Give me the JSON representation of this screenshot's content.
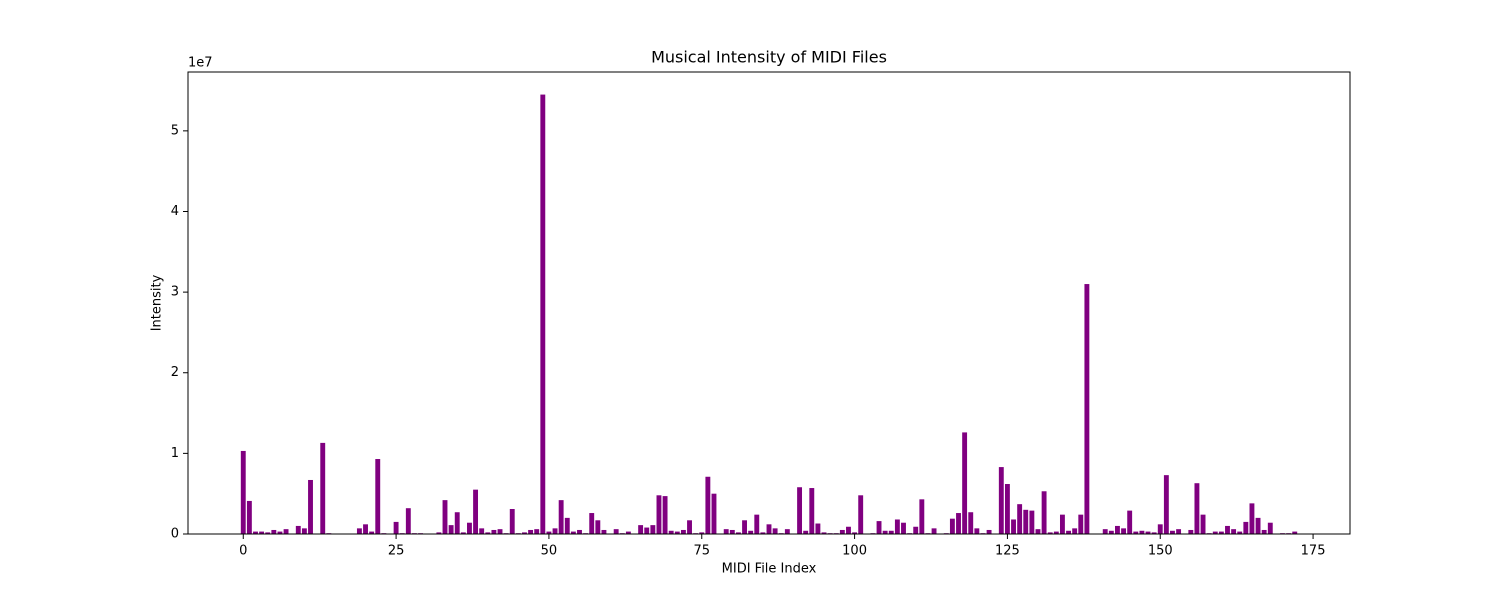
{
  "chart_data": {
    "type": "bar",
    "title": "Musical Intensity of MIDI Files",
    "xlabel": "MIDI File Index",
    "ylabel": "Intensity",
    "y_offset_label": "1e7",
    "color": "#800080",
    "x": [
      0,
      1,
      2,
      3,
      4,
      5,
      6,
      7,
      8,
      9,
      10,
      11,
      12,
      13,
      14,
      15,
      16,
      17,
      18,
      19,
      20,
      21,
      22,
      23,
      24,
      25,
      26,
      27,
      28,
      29,
      30,
      31,
      32,
      33,
      34,
      35,
      36,
      37,
      38,
      39,
      40,
      41,
      42,
      43,
      44,
      45,
      46,
      47,
      48,
      49,
      50,
      51,
      52,
      53,
      54,
      55,
      56,
      57,
      58,
      59,
      60,
      61,
      62,
      63,
      64,
      65,
      66,
      67,
      68,
      69,
      70,
      71,
      72,
      73,
      74,
      75,
      76,
      77,
      78,
      79,
      80,
      81,
      82,
      83,
      84,
      85,
      86,
      87,
      88,
      89,
      90,
      91,
      92,
      93,
      94,
      95,
      96,
      97,
      98,
      99,
      100,
      101,
      102,
      103,
      104,
      105,
      106,
      107,
      108,
      109,
      110,
      111,
      112,
      113,
      114,
      115,
      116,
      117,
      118,
      119,
      120,
      121,
      122,
      123,
      124,
      125,
      126,
      127,
      128,
      129,
      130,
      131,
      132,
      133,
      134,
      135,
      136,
      137,
      138,
      139,
      140,
      141,
      142,
      143,
      144,
      145,
      146,
      147,
      148,
      149,
      150,
      151,
      152,
      153,
      154,
      155,
      156,
      157,
      158,
      159,
      160,
      161,
      162,
      163,
      164,
      165,
      166,
      167,
      168,
      169,
      170,
      171,
      172
    ],
    "values": [
      1.03,
      0.41,
      0.03,
      0.03,
      0.02,
      0.05,
      0.03,
      0.06,
      0,
      0.1,
      0.07,
      0.67,
      0,
      1.13,
      0.01,
      0,
      0,
      0,
      0,
      0.07,
      0.12,
      0.03,
      0.93,
      0.01,
      0,
      0.15,
      0.01,
      0.32,
      0.01,
      0.01,
      0,
      0,
      0.02,
      0.42,
      0.11,
      0.27,
      0.02,
      0.14,
      0.55,
      0.07,
      0.02,
      0.05,
      0.06,
      0.01,
      0.31,
      0.01,
      0.02,
      0.05,
      0.06,
      5.45,
      0.03,
      0.07,
      0.42,
      0.2,
      0.03,
      0.05,
      0.01,
      0.26,
      0.17,
      0.05,
      0,
      0.06,
      0.01,
      0.03,
      0,
      0.11,
      0.08,
      0.11,
      0.48,
      0.47,
      0.04,
      0.03,
      0.05,
      0.17,
      0.01,
      0.02,
      0.71,
      0.5,
      0,
      0.06,
      0.05,
      0.02,
      0.17,
      0.04,
      0.24,
      0.02,
      0.12,
      0.07,
      0.01,
      0.06,
      0,
      0.58,
      0.04,
      0.57,
      0.13,
      0.02,
      0.01,
      0.01,
      0.05,
      0.09,
      0.02,
      0.48,
      0,
      0.01,
      0.16,
      0.04,
      0.04,
      0.18,
      0.14,
      0.01,
      0.09,
      0.43,
      0.01,
      0.07,
      0,
      0.01,
      0.19,
      0.26,
      1.26,
      0.27,
      0.07,
      0.01,
      0.05,
      0,
      0.83,
      0.62,
      0.18,
      0.37,
      0.3,
      0.29,
      0.06,
      0.53,
      0.02,
      0.03,
      0.24,
      0.04,
      0.07,
      0.24,
      3.1,
      0,
      0,
      0.06,
      0.04,
      0.1,
      0.07,
      0.29,
      0.03,
      0.04,
      0.03,
      0.02,
      0.12,
      0.73,
      0.04,
      0.06,
      0,
      0.05,
      0.63,
      0.24,
      0.01,
      0.03,
      0.03,
      0.1,
      0.06,
      0.03,
      0.15,
      0.38,
      0.2,
      0.05,
      0.14,
      0,
      0.01,
      0.01,
      0.03
    ],
    "bar_width": 0.8,
    "xlim": [
      -9.04,
      181.04
    ],
    "xticks": [
      0,
      25,
      50,
      75,
      100,
      125,
      150,
      175
    ],
    "ylim": [
      0,
      5.73
    ],
    "yticks": [
      0,
      1,
      2,
      3,
      4,
      5
    ],
    "grid": false
  }
}
